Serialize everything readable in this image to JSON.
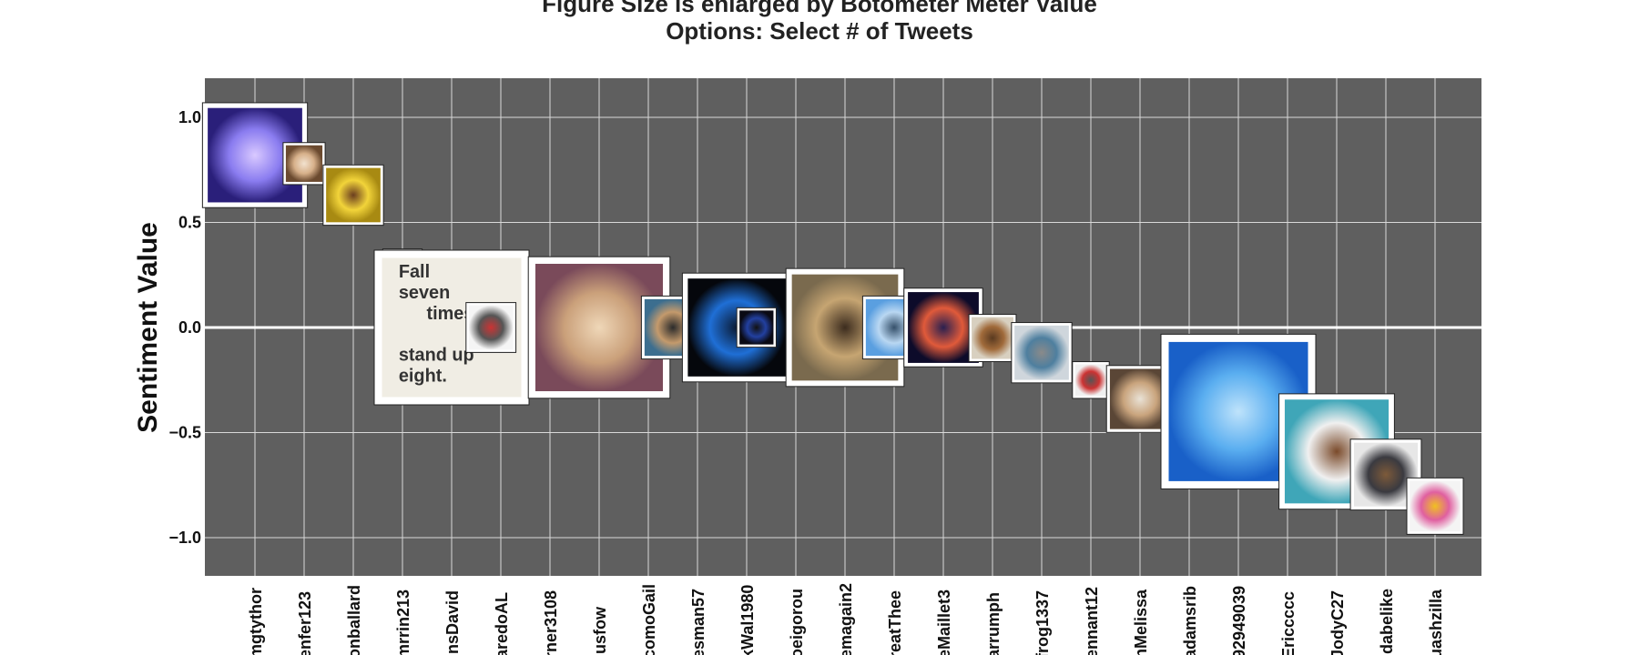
{
  "chart_data": {
    "type": "scatter",
    "title_lines": [
      "Figure Size is enlarged by Botometer Meter Value",
      "Options:  Select # of Tweets"
    ],
    "xlabel": "",
    "ylabel": "Sentiment Value",
    "ylim": [
      -1.17,
      1.2
    ],
    "yticks": [
      "1.0",
      "0.5",
      "0.0",
      "−0.5",
      "−1.0"
    ],
    "ytick_values": [
      1.0,
      0.5,
      0.0,
      -0.5,
      -1.0
    ],
    "grid": true,
    "zero_line": true,
    "background": "#5f5f5f",
    "categories": [
      "mgtythor",
      "enfer123",
      "onballard",
      "mrrin213",
      "insDavid",
      "aredoAL",
      "rner3108",
      "jusfow",
      "comoGail",
      "esman57",
      "kWal1980",
      "oeigorou",
      "emagain2",
      "reatThee",
      "eMaillet3",
      "arrumph",
      "frog1337",
      "ennant12",
      "nMelissa",
      "adamsrib",
      "92949039",
      "Ericcccc",
      "JodyC27",
      "idabelike",
      "uashzilla"
    ],
    "points": [
      {
        "user": "mgtythor",
        "x": 0.0,
        "y": 0.82,
        "botometer": 0.62,
        "avatar": "purple-rose"
      },
      {
        "user": "enfer123",
        "x": 1.0,
        "y": 0.78,
        "botometer": 0.14,
        "avatar": "portrait-small"
      },
      {
        "user": "onballard",
        "x": 2.0,
        "y": 0.63,
        "botometer": 0.28,
        "avatar": "yellow-comic"
      },
      {
        "user": "mrrin213",
        "x": 3.0,
        "y": 0.0,
        "botometer": 0.22,
        "avatar": "pink-figure"
      },
      {
        "user": "mrrin213-b",
        "x": 3.0,
        "y": 0.28,
        "botometer": 0.12,
        "avatar": "cat-sketch"
      },
      {
        "user": "insDavid",
        "x": 4.0,
        "y": 0.0,
        "botometer": 1.0,
        "avatar": "fall-seven-times-quote"
      },
      {
        "user": "aredoAL",
        "x": 4.8,
        "y": 0.0,
        "botometer": 0.2,
        "avatar": "wolf-logo"
      },
      {
        "user": "jusfow",
        "x": 7.0,
        "y": 0.0,
        "botometer": 0.9,
        "avatar": "smiling-woman"
      },
      {
        "user": "esman57",
        "x": 8.5,
        "y": 0.0,
        "botometer": 0.3,
        "avatar": "man-portrait"
      },
      {
        "user": "kWal1980",
        "x": 9.8,
        "y": 0.0,
        "botometer": 0.65,
        "avatar": "blue-glow"
      },
      {
        "user": "oeigorou",
        "x": 10.2,
        "y": 0.0,
        "botometer": 0.12,
        "avatar": "dark-square"
      },
      {
        "user": "emagain2",
        "x": 12.0,
        "y": 0.0,
        "botometer": 0.72,
        "avatar": "dog-photo"
      },
      {
        "user": "reatThee",
        "x": 13.0,
        "y": 0.0,
        "botometer": 0.3,
        "avatar": "statue-sky"
      },
      {
        "user": "eMaillet3",
        "x": 14.0,
        "y": 0.0,
        "botometer": 0.42,
        "avatar": "night-figure"
      },
      {
        "user": "arrumph",
        "x": 15.0,
        "y": -0.05,
        "botometer": 0.18,
        "avatar": "bear-face"
      },
      {
        "user": "frog1337",
        "x": 16.0,
        "y": -0.12,
        "botometer": 0.28,
        "avatar": "car-photo"
      },
      {
        "user": "ennant12",
        "x": 17.0,
        "y": -0.25,
        "botometer": 0.1,
        "avatar": "tiny-logo"
      },
      {
        "user": "nMelissa",
        "x": 18.0,
        "y": -0.34,
        "botometer": 0.33,
        "avatar": "people-selfie"
      },
      {
        "user": "adamsrib",
        "x": 20.0,
        "y": -0.4,
        "botometer": 1.0,
        "avatar": "blue-dye-pattern"
      },
      {
        "user": "Ericcccc",
        "x": 22.0,
        "y": -0.59,
        "botometer": 0.7,
        "avatar": "man-selfie"
      },
      {
        "user": "JodyC27",
        "x": 23.0,
        "y": -0.7,
        "botometer": 0.36,
        "avatar": "dog-outdoor"
      },
      {
        "user": "uashzilla",
        "x": 24.0,
        "y": -0.85,
        "botometer": 0.25,
        "avatar": "pink-cartoon"
      }
    ]
  }
}
